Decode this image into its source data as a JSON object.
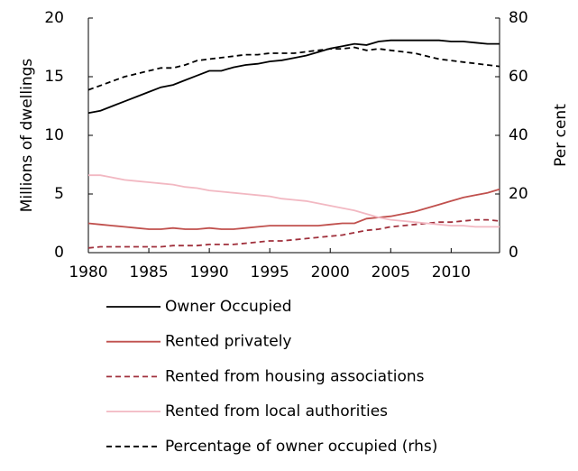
{
  "chart_data": {
    "type": "line",
    "x": [
      1980,
      1981,
      1982,
      1983,
      1984,
      1985,
      1986,
      1987,
      1988,
      1989,
      1990,
      1991,
      1992,
      1993,
      1994,
      1995,
      1996,
      1997,
      1998,
      1999,
      2000,
      2001,
      2002,
      2003,
      2004,
      2005,
      2006,
      2007,
      2008,
      2009,
      2010,
      2011,
      2012,
      2013,
      2014
    ],
    "xlim": [
      1980,
      2014
    ],
    "xticks": [
      1980,
      1985,
      1990,
      1995,
      2000,
      2005,
      2010
    ],
    "ylim": [
      0,
      20
    ],
    "yticks": [
      0,
      5,
      10,
      15,
      20
    ],
    "ylabel": "Millions of dwellings",
    "y2lim": [
      0,
      80
    ],
    "y2ticks": [
      0,
      20,
      40,
      60,
      80
    ],
    "y2label": "Per cent",
    "series": [
      {
        "name": "Owner Occupied",
        "color": "#000000",
        "dashed": false,
        "values": [
          11.9,
          12.1,
          12.5,
          12.9,
          13.3,
          13.7,
          14.1,
          14.3,
          14.7,
          15.1,
          15.5,
          15.5,
          15.8,
          16.0,
          16.1,
          16.3,
          16.4,
          16.6,
          16.8,
          17.1,
          17.4,
          17.6,
          17.8,
          17.7,
          18.0,
          18.1,
          18.1,
          18.1,
          18.1,
          18.1,
          18.0,
          18.0,
          17.9,
          17.8,
          17.8
        ]
      },
      {
        "name": "Rented privately",
        "color": "#c0504d",
        "dashed": false,
        "values": [
          2.5,
          2.4,
          2.3,
          2.2,
          2.1,
          2.0,
          2.0,
          2.1,
          2.0,
          2.0,
          2.1,
          2.0,
          2.0,
          2.1,
          2.2,
          2.3,
          2.3,
          2.3,
          2.3,
          2.3,
          2.4,
          2.5,
          2.5,
          2.9,
          3.0,
          3.1,
          3.3,
          3.5,
          3.8,
          4.1,
          4.4,
          4.7,
          4.9,
          5.1,
          5.4
        ]
      },
      {
        "name": "Rented from housing associations",
        "color": "#a0303c",
        "dashed": true,
        "values": [
          0.4,
          0.5,
          0.5,
          0.5,
          0.5,
          0.5,
          0.5,
          0.6,
          0.6,
          0.6,
          0.7,
          0.7,
          0.7,
          0.8,
          0.9,
          1.0,
          1.0,
          1.1,
          1.2,
          1.3,
          1.4,
          1.5,
          1.7,
          1.9,
          2.0,
          2.2,
          2.3,
          2.4,
          2.5,
          2.6,
          2.6,
          2.7,
          2.8,
          2.8,
          2.7
        ]
      },
      {
        "name": "Rented from local authorities",
        "color": "#f2b8c2",
        "dashed": false,
        "values": [
          6.6,
          6.6,
          6.4,
          6.2,
          6.1,
          6.0,
          5.9,
          5.8,
          5.6,
          5.5,
          5.3,
          5.2,
          5.1,
          5.0,
          4.9,
          4.8,
          4.6,
          4.5,
          4.4,
          4.2,
          4.0,
          3.8,
          3.6,
          3.3,
          3.0,
          2.8,
          2.7,
          2.6,
          2.5,
          2.4,
          2.3,
          2.3,
          2.2,
          2.2,
          2.2
        ]
      },
      {
        "name": "Percentage of owner occupied (rhs)",
        "color": "#000000",
        "dashed": true,
        "axis": "y2",
        "values": [
          55.5,
          57,
          58.5,
          60,
          61,
          62,
          63,
          63,
          64,
          65.5,
          66,
          66.5,
          67,
          67.5,
          67.5,
          68,
          68,
          68,
          68.5,
          69,
          69.5,
          69.5,
          70,
          69,
          69.5,
          69,
          68.5,
          68,
          67,
          66,
          65.5,
          65,
          64.5,
          64,
          63.5
        ]
      }
    ]
  }
}
